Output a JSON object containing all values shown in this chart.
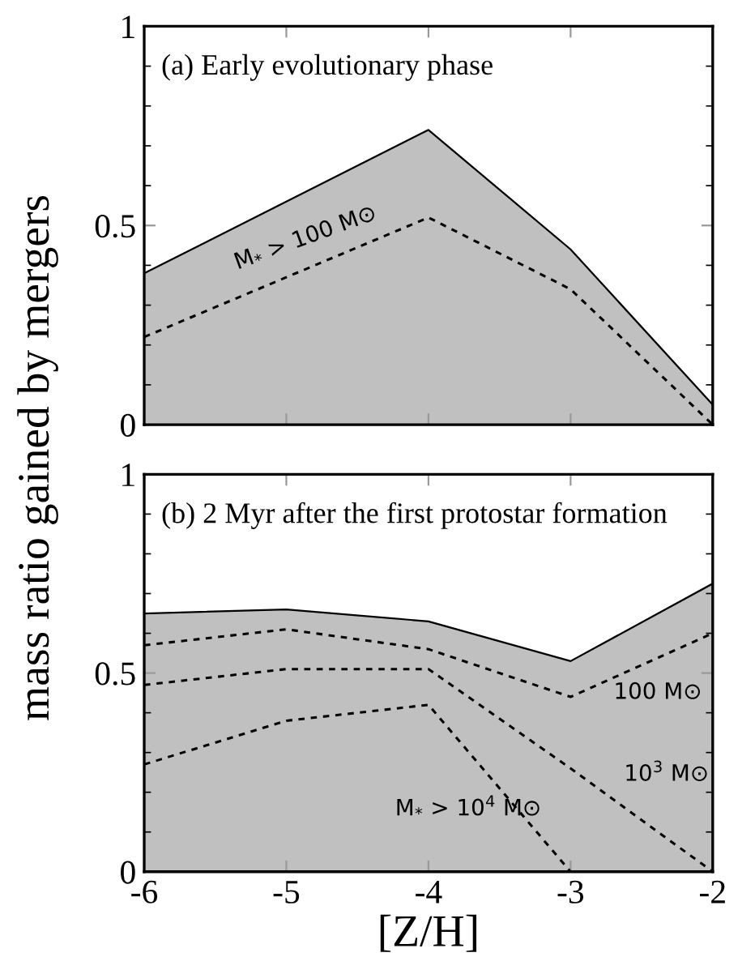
{
  "chart_data": [
    {
      "type": "area",
      "title": "(a) Early evolutionary phase",
      "ylabel": "mass ratio gained by mergers",
      "x": [
        -6,
        -5,
        -4,
        -3,
        -2
      ],
      "series": [
        {
          "color": "#c0c0c0",
          "values": [
            0.38,
            0.56,
            0.74,
            0.44,
            0.05
          ]
        },
        {
          "type": "line",
          "color": "#000000",
          "line_style": "dashed",
          "values": [
            0.22,
            0.37,
            0.52,
            0.34,
            0
          ]
        }
      ],
      "annotations": [
        {
          "text": "M$_{*}$ > 100 M⊙",
          "x": -4.8,
          "y": 0.4
        }
      ],
      "xlim": [
        -6,
        -2
      ],
      "xticks": [
        -6,
        -5,
        -4,
        -3,
        -2
      ],
      "ylim": [
        0,
        1
      ],
      "yticks": [
        0,
        0.5,
        1
      ],
      "tick_labels": "y",
      "grid": false,
      "legend": false
    },
    {
      "type": "area",
      "title": "(b) 2 Myr after the first protostar formation",
      "xlabel": "[Z/H]",
      "x": [
        -6,
        -5,
        -4,
        -3,
        -2
      ],
      "series": [
        {
          "color": "#c0c0c0",
          "values": [
            0.65,
            0.66,
            0.63,
            0.53,
            0.725
          ]
        },
        {
          "type": "line",
          "color": "#000000",
          "line_style": "dashed",
          "values": [
            0.57,
            0.61,
            0.56,
            0.44,
            0.6
          ]
        },
        {
          "type": "line",
          "color": "#000000",
          "line_style": "dashed",
          "values": [
            0.47,
            0.51,
            0.51,
            0.26,
            0
          ]
        },
        {
          "type": "line",
          "color": "#000000",
          "line_style": "dashed",
          "values": [
            0.27,
            0.38,
            0.42,
            0,
            0
          ]
        }
      ],
      "annotations": [
        {
          "text": "100 M⊙",
          "x": -2.45,
          "y": 0.53
        },
        {
          "text": "10$^{3}$ M⊙",
          "x": -2.8,
          "y": 0.21
        },
        "M$_{*}$ > 10$^{4}$ M⊙"
      ],
      "xlim": [
        -6,
        -2
      ],
      "xticks": [
        -6,
        -5,
        -4,
        -3,
        -2
      ],
      "ylim": [
        0,
        1
      ],
      "yticks": [
        0,
        0.5,
        1
      ],
      "grid": false,
      "legend": false
    }
  ]
}
